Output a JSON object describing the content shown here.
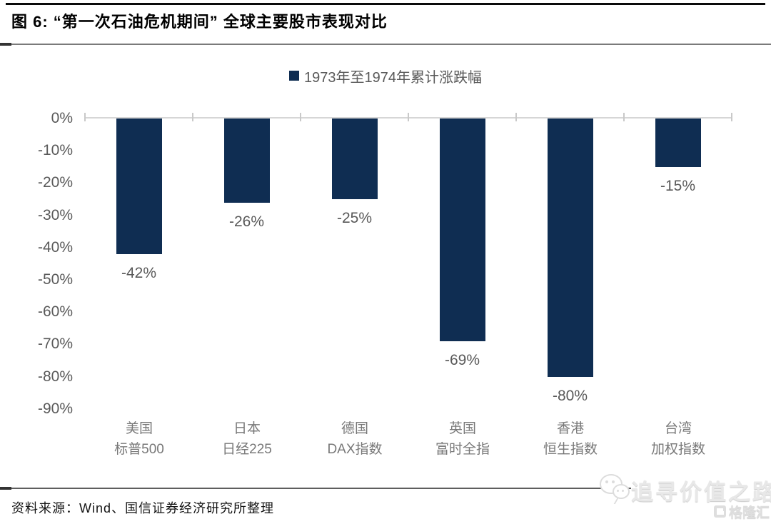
{
  "figure": {
    "title": "图 6: “第一次石油危机期间” 全球主要股市表现对比"
  },
  "footer": {
    "source": "资料来源：Wind、国信证券经济研究所整理"
  },
  "watermark": {
    "wechat_icon": "wechat-icon",
    "text": "追寻价值之路",
    "logo_text": "格隆汇"
  },
  "chart_data": {
    "type": "bar",
    "title": "“第一次石油危机期间”全球主要股市表现对比",
    "legend_label": "1973年至1974年累计涨跌幅",
    "legend_position": "top-center",
    "grid": false,
    "bar_color": "#0f2d52",
    "categories": [
      {
        "line1": "美国",
        "line2": "标普500"
      },
      {
        "line1": "日本",
        "line2": "日经225"
      },
      {
        "line1": "德国",
        "line2": "DAX指数"
      },
      {
        "line1": "英国",
        "line2": "富时全指"
      },
      {
        "line1": "香港",
        "line2": "恒生指数"
      },
      {
        "line1": "台湾",
        "line2": "加权指数"
      }
    ],
    "series": [
      {
        "name": "1973年至1974年累计涨跌幅",
        "values": [
          -42,
          -26,
          -25,
          -69,
          -80,
          -15
        ],
        "data_labels": [
          "-42%",
          "-26%",
          "-25%",
          "-69%",
          "-80%",
          "-15%"
        ]
      }
    ],
    "y_axis": {
      "unit": "%",
      "min": -90,
      "max": 0,
      "step": 10,
      "ticks": [
        {
          "label": "0%",
          "value": 0
        },
        {
          "label": "-10%",
          "value": -10
        },
        {
          "label": "-20%",
          "value": -20
        },
        {
          "label": "-30%",
          "value": -30
        },
        {
          "label": "-40%",
          "value": -40
        },
        {
          "label": "-50%",
          "value": -50
        },
        {
          "label": "-60%",
          "value": -60
        },
        {
          "label": "-70%",
          "value": -70
        },
        {
          "label": "-80%",
          "value": -80
        },
        {
          "label": "-90%",
          "value": -90
        }
      ]
    }
  }
}
